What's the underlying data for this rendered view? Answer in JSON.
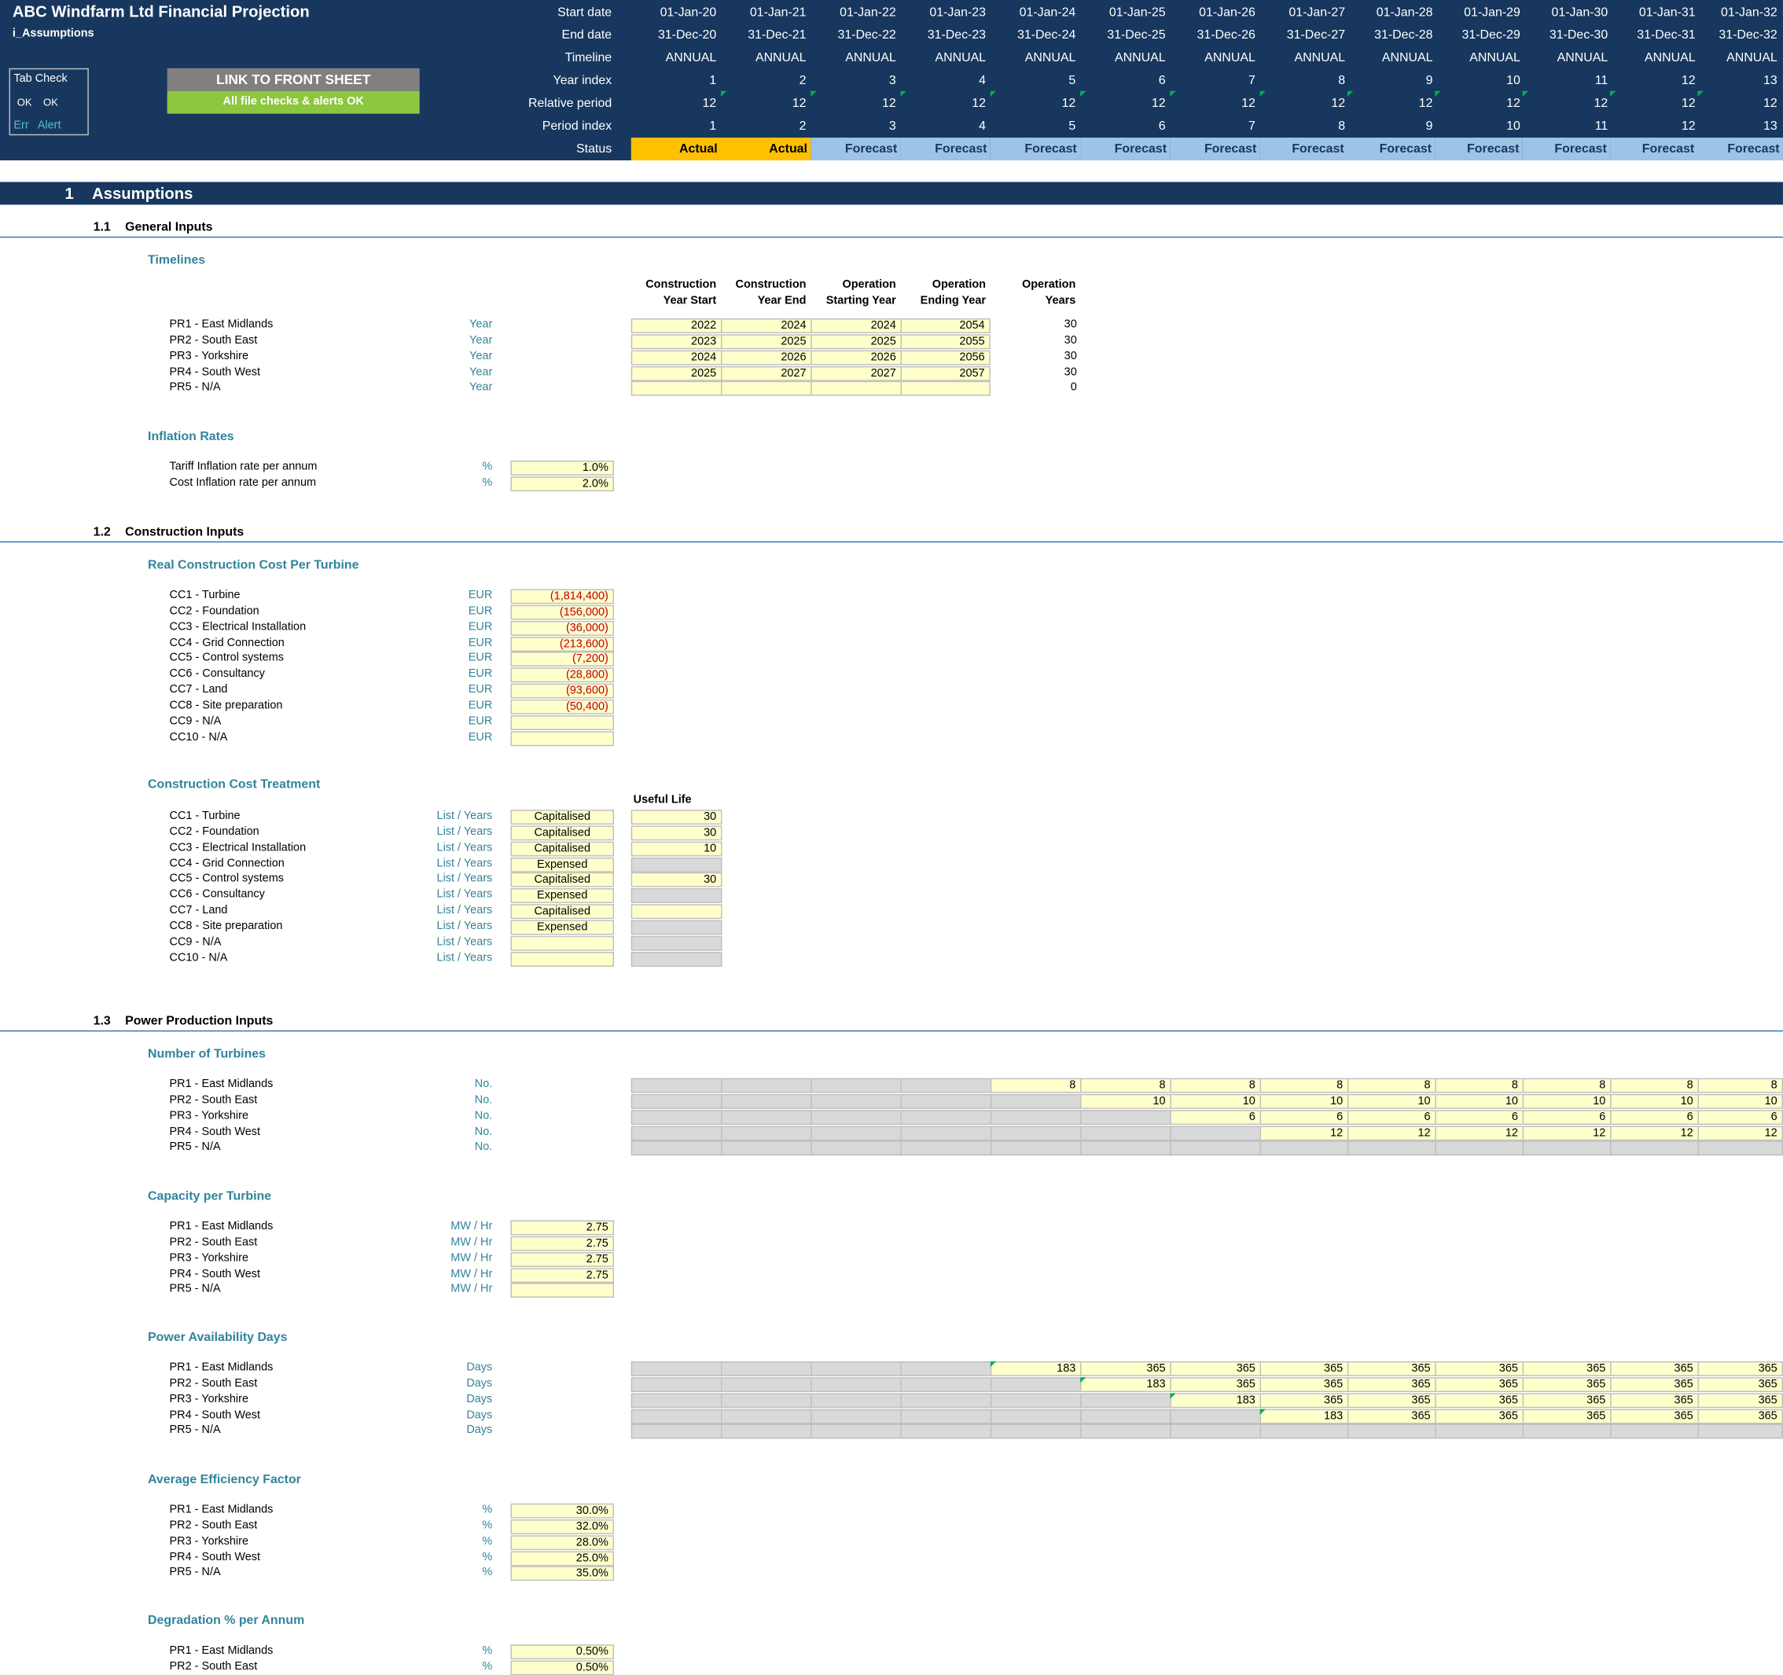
{
  "header": {
    "title": "ABC Windfarm Ltd Financial Projection",
    "sheet_name": "i_Assumptions",
    "tab_check": {
      "label": "Tab Check",
      "ok1": "OK",
      "ok2": "OK",
      "err": "Err",
      "alert": "Alert"
    },
    "link_button": "LINK TO FRONT SHEET",
    "checks_status": "All file checks & alerts OK",
    "row_labels": [
      "Start date",
      "End date",
      "Timeline",
      "Year index",
      "Relative period",
      "Period index",
      "Status"
    ],
    "start_dates": [
      "01-Jan-20",
      "01-Jan-21",
      "01-Jan-22",
      "01-Jan-23",
      "01-Jan-24",
      "01-Jan-25",
      "01-Jan-26",
      "01-Jan-27",
      "01-Jan-28",
      "01-Jan-29",
      "01-Jan-30",
      "01-Jan-31",
      "01-Jan-32"
    ],
    "end_dates": [
      "31-Dec-20",
      "31-Dec-21",
      "31-Dec-22",
      "31-Dec-23",
      "31-Dec-24",
      "31-Dec-25",
      "31-Dec-26",
      "31-Dec-27",
      "31-Dec-28",
      "31-Dec-29",
      "31-Dec-30",
      "31-Dec-31",
      "31-Dec-32"
    ],
    "timeline": [
      "ANNUAL",
      "ANNUAL",
      "ANNUAL",
      "ANNUAL",
      "ANNUAL",
      "ANNUAL",
      "ANNUAL",
      "ANNUAL",
      "ANNUAL",
      "ANNUAL",
      "ANNUAL",
      "ANNUAL",
      "ANNUAL"
    ],
    "year_index": [
      "1",
      "2",
      "3",
      "4",
      "5",
      "6",
      "7",
      "8",
      "9",
      "10",
      "11",
      "12",
      "13"
    ],
    "relative_period": [
      "12",
      "12",
      "12",
      "12",
      "12",
      "12",
      "12",
      "12",
      "12",
      "12",
      "12",
      "12",
      "12"
    ],
    "period_index": [
      "1",
      "2",
      "3",
      "4",
      "5",
      "6",
      "7",
      "8",
      "9",
      "10",
      "11",
      "12",
      "13"
    ],
    "status": [
      "Actual",
      "Actual",
      "Forecast",
      "Forecast",
      "Forecast",
      "Forecast",
      "Forecast",
      "Forecast",
      "Forecast",
      "Forecast",
      "Forecast",
      "Forecast",
      "Forecast"
    ],
    "colors": {
      "navy": "#17375e",
      "actual": "#ffc000",
      "forecast": "#9dc3e6",
      "ok_green": "#92d050",
      "link_gray": "#808080"
    }
  },
  "section1": {
    "number": "1",
    "title": "Assumptions"
  },
  "general": {
    "number": "1.1",
    "title": "General Inputs",
    "timelines": {
      "title": "Timelines",
      "columns": [
        "Construction\nYear Start",
        "Construction\nYear End",
        "Operation\nStarting Year",
        "Operation\nEnding Year",
        "Operation\nYears"
      ],
      "rows": [
        {
          "label": "PR1 - East Midlands",
          "unit": "Year",
          "values": [
            "2022",
            "2024",
            "2024",
            "2054"
          ],
          "years": "30"
        },
        {
          "label": "PR2 - South East",
          "unit": "Year",
          "values": [
            "2023",
            "2025",
            "2025",
            "2055"
          ],
          "years": "30"
        },
        {
          "label": "PR3 - Yorkshire",
          "unit": "Year",
          "values": [
            "2024",
            "2026",
            "2026",
            "2056"
          ],
          "years": "30"
        },
        {
          "label": "PR4 - South West",
          "unit": "Year",
          "values": [
            "2025",
            "2027",
            "2027",
            "2057"
          ],
          "years": "30"
        },
        {
          "label": "PR5 - N/A",
          "unit": "Year",
          "values": [
            "",
            "",
            "",
            ""
          ],
          "years": "0"
        }
      ]
    },
    "inflation": {
      "title": "Inflation Rates",
      "rows": [
        {
          "label": "Tariff Inflation rate per annum",
          "unit": "%",
          "value": "1.0%"
        },
        {
          "label": "Cost Inflation rate per annum",
          "unit": "%",
          "value": "2.0%"
        }
      ]
    }
  },
  "construction": {
    "number": "1.2",
    "title": "Construction Inputs",
    "real_cost": {
      "title": "Real Construction Cost Per Turbine",
      "rows": [
        {
          "label": "CC1 - Turbine",
          "unit": "EUR",
          "value": "(1,814,400)"
        },
        {
          "label": "CC2 - Foundation",
          "unit": "EUR",
          "value": "(156,000)"
        },
        {
          "label": "CC3 - Electrical Installation",
          "unit": "EUR",
          "value": "(36,000)"
        },
        {
          "label": "CC4 - Grid Connection",
          "unit": "EUR",
          "value": "(213,600)"
        },
        {
          "label": "CC5 - Control systems",
          "unit": "EUR",
          "value": "(7,200)"
        },
        {
          "label": "CC6 - Consultancy",
          "unit": "EUR",
          "value": "(28,800)"
        },
        {
          "label": "CC7 - Land",
          "unit": "EUR",
          "value": "(93,600)"
        },
        {
          "label": "CC8 - Site preparation",
          "unit": "EUR",
          "value": "(50,400)"
        },
        {
          "label": "CC9 - N/A",
          "unit": "EUR",
          "value": ""
        },
        {
          "label": "CC10 - N/A",
          "unit": "EUR",
          "value": ""
        }
      ]
    },
    "treatment": {
      "title": "Construction Cost Treatment",
      "useful_life_header": "Useful Life",
      "rows": [
        {
          "label": "CC1 - Turbine",
          "unit": "List / Years",
          "treatment": "Capitalised",
          "life": "30"
        },
        {
          "label": "CC2 - Foundation",
          "unit": "List / Years",
          "treatment": "Capitalised",
          "life": "30"
        },
        {
          "label": "CC3 - Electrical Installation",
          "unit": "List / Years",
          "treatment": "Capitalised",
          "life": "10"
        },
        {
          "label": "CC4 - Grid Connection",
          "unit": "List / Years",
          "treatment": "Expensed",
          "life": ""
        },
        {
          "label": "CC5 - Control systems",
          "unit": "List / Years",
          "treatment": "Capitalised",
          "life": "30"
        },
        {
          "label": "CC6 - Consultancy",
          "unit": "List / Years",
          "treatment": "Expensed",
          "life": ""
        },
        {
          "label": "CC7 - Land",
          "unit": "List / Years",
          "treatment": "Capitalised",
          "life": ""
        },
        {
          "label": "CC8 - Site preparation",
          "unit": "List / Years",
          "treatment": "Expensed",
          "life": ""
        },
        {
          "label": "CC9 - N/A",
          "unit": "List / Years",
          "treatment": "",
          "life": ""
        },
        {
          "label": "CC10 - N/A",
          "unit": "List / Years",
          "treatment": "",
          "life": ""
        }
      ]
    }
  },
  "power": {
    "number": "1.3",
    "title": "Power Production Inputs",
    "turbines": {
      "title": "Number of Turbines",
      "rows": [
        {
          "label": "PR1 - East Midlands",
          "unit": "No.",
          "values": [
            "",
            "",
            "",
            "",
            "8",
            "8",
            "8",
            "8",
            "8",
            "8",
            "8",
            "8",
            "8"
          ]
        },
        {
          "label": "PR2 - South East",
          "unit": "No.",
          "values": [
            "",
            "",
            "",
            "",
            "",
            "10",
            "10",
            "10",
            "10",
            "10",
            "10",
            "10",
            "10"
          ]
        },
        {
          "label": "PR3 - Yorkshire",
          "unit": "No.",
          "values": [
            "",
            "",
            "",
            "",
            "",
            "",
            "6",
            "6",
            "6",
            "6",
            "6",
            "6",
            "6"
          ]
        },
        {
          "label": "PR4 - South West",
          "unit": "No.",
          "values": [
            "",
            "",
            "",
            "",
            "",
            "",
            "",
            "12",
            "12",
            "12",
            "12",
            "12",
            "12"
          ]
        },
        {
          "label": "PR5 - N/A",
          "unit": "No.",
          "values": [
            "",
            "",
            "",
            "",
            "",
            "",
            "",
            "",
            "",
            "",
            "",
            "",
            ""
          ]
        }
      ]
    },
    "capacity": {
      "title": "Capacity per Turbine",
      "rows": [
        {
          "label": "PR1 - East Midlands",
          "unit": "MW / Hr",
          "value": "2.75"
        },
        {
          "label": "PR2 - South East",
          "unit": "MW / Hr",
          "value": "2.75"
        },
        {
          "label": "PR3 - Yorkshire",
          "unit": "MW / Hr",
          "value": "2.75"
        },
        {
          "label": "PR4 - South West",
          "unit": "MW / Hr",
          "value": "2.75"
        },
        {
          "label": "PR5 - N/A",
          "unit": "MW / Hr",
          "value": ""
        }
      ]
    },
    "availability": {
      "title": "Power Availability Days",
      "rows": [
        {
          "label": "PR1 - East Midlands",
          "unit": "Days",
          "values": [
            "",
            "",
            "",
            "",
            "183",
            "365",
            "365",
            "365",
            "365",
            "365",
            "365",
            "365",
            "365"
          ]
        },
        {
          "label": "PR2 - South East",
          "unit": "Days",
          "values": [
            "",
            "",
            "",
            "",
            "",
            "183",
            "365",
            "365",
            "365",
            "365",
            "365",
            "365",
            "365"
          ]
        },
        {
          "label": "PR3 - Yorkshire",
          "unit": "Days",
          "values": [
            "",
            "",
            "",
            "",
            "",
            "",
            "183",
            "365",
            "365",
            "365",
            "365",
            "365",
            "365"
          ]
        },
        {
          "label": "PR4 - South West",
          "unit": "Days",
          "values": [
            "",
            "",
            "",
            "",
            "",
            "",
            "",
            "183",
            "365",
            "365",
            "365",
            "365",
            "365"
          ]
        },
        {
          "label": "PR5 - N/A",
          "unit": "Days",
          "values": [
            "",
            "",
            "",
            "",
            "",
            "",
            "",
            "",
            "",
            "",
            "",
            "",
            ""
          ]
        }
      ]
    },
    "efficiency": {
      "title": "Average Efficiency Factor",
      "rows": [
        {
          "label": "PR1 - East Midlands",
          "unit": "%",
          "value": "30.0%"
        },
        {
          "label": "PR2 - South East",
          "unit": "%",
          "value": "32.0%"
        },
        {
          "label": "PR3 - Yorkshire",
          "unit": "%",
          "value": "28.0%"
        },
        {
          "label": "PR4 - South West",
          "unit": "%",
          "value": "25.0%"
        },
        {
          "label": "PR5 - N/A",
          "unit": "%",
          "value": "35.0%"
        }
      ]
    },
    "degradation": {
      "title": "Degradation % per Annum",
      "rows": [
        {
          "label": "PR1 - East Midlands",
          "unit": "%",
          "value": "0.50%"
        },
        {
          "label": "PR2 - South East",
          "unit": "%",
          "value": "0.50%"
        }
      ]
    }
  }
}
